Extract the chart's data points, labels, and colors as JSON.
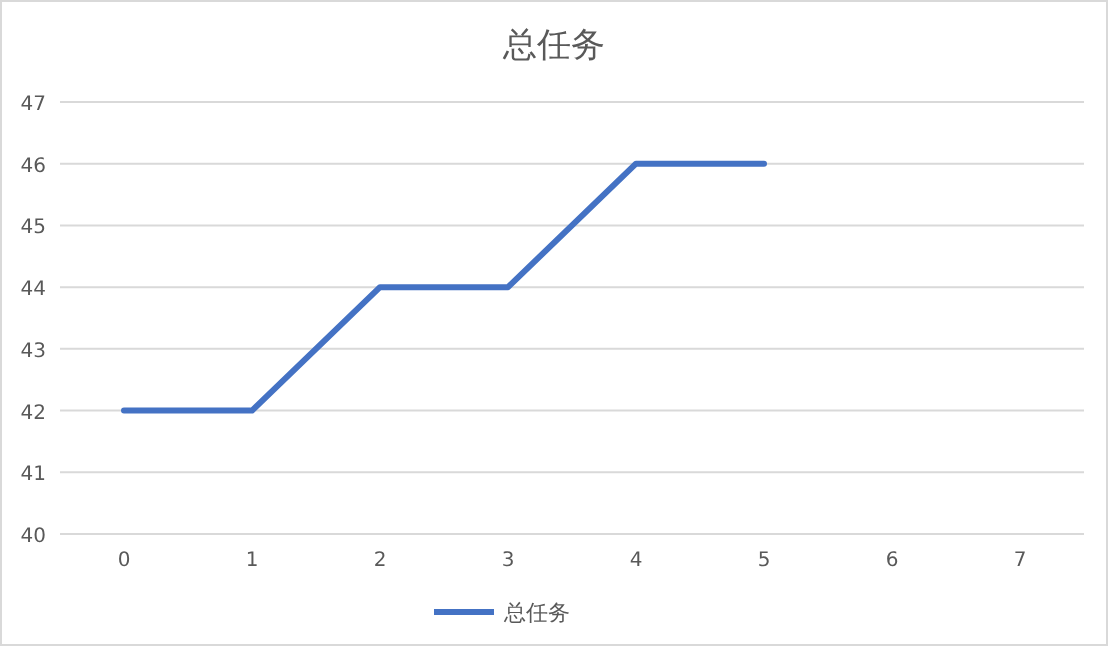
{
  "chart_data": {
    "type": "line",
    "title": "总任务",
    "categories": [
      "0",
      "1",
      "2",
      "3",
      "4",
      "5",
      "6",
      "7"
    ],
    "series": [
      {
        "name": "总任务",
        "color": "#4472c4",
        "values": [
          42,
          42,
          44,
          44,
          46,
          46,
          null,
          null
        ]
      }
    ],
    "ylim": [
      40,
      47
    ],
    "yticks": [
      40,
      41,
      42,
      43,
      44,
      45,
      46,
      47
    ],
    "grid": "y",
    "legend": "bottom"
  }
}
